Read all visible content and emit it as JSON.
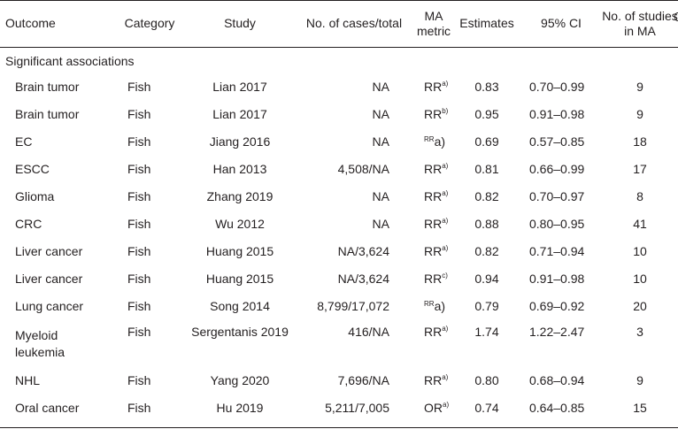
{
  "headers": {
    "outcome": "Outcome",
    "category": "Category",
    "study": "Study",
    "cases": "No. of cases/total",
    "metric_line1": "MA",
    "metric_line2": "metric",
    "estimates": "Estimates",
    "ci": "95% CI",
    "studies_line1": "No. of studies",
    "studies_line2": "in MA"
  },
  "section_label": "Significant associations",
  "rows": [
    {
      "outcome": "Brain tumor",
      "category": "Fish",
      "study": "Lian 2017",
      "cases": "NA",
      "metric": "RR",
      "note": "a)",
      "estimate": "0.83",
      "ci": "0.70–0.99",
      "studies": "9"
    },
    {
      "outcome": "Brain tumor",
      "category": "Fish",
      "study": "Lian 2017",
      "cases": "NA",
      "metric": "RR",
      "note": "b)",
      "estimate": "0.95",
      "ci": "0.91–0.98",
      "studies": "9"
    },
    {
      "outcome": "EC",
      "category": "Fish",
      "study": "Jiang 2016",
      "cases": "NA",
      "metric": "RR",
      "note": "a)",
      "estimate": "0.69",
      "ci": "0.57–0.85",
      "studies": "18"
    },
    {
      "outcome": "ESCC",
      "category": "Fish",
      "study": "Han 2013",
      "cases": "4,508/NA",
      "metric": "RR",
      "note": "a)",
      "estimate": "0.81",
      "ci": "0.66–0.99",
      "studies": "17"
    },
    {
      "outcome": "Glioma",
      "category": "Fish",
      "study": "Zhang 2019",
      "cases": "NA",
      "metric": "RR",
      "note": "a)",
      "estimate": "0.82",
      "ci": "0.70–0.97",
      "studies": "8"
    },
    {
      "outcome": "CRC",
      "category": "Fish",
      "study": "Wu 2012",
      "cases": "NA",
      "metric": "RR",
      "note": "a)",
      "estimate": "0.88",
      "ci": "0.80–0.95",
      "studies": "41"
    },
    {
      "outcome": "Liver cancer",
      "category": "Fish",
      "study": "Huang 2015",
      "cases": "NA/3,624",
      "metric": "RR",
      "note": "a)",
      "estimate": "0.82",
      "ci": "0.71–0.94",
      "studies": "10"
    },
    {
      "outcome": "Liver cancer",
      "category": "Fish",
      "study": "Huang 2015",
      "cases": "NA/3,624",
      "metric": "RR",
      "note": "c)",
      "estimate": "0.94",
      "ci": "0.91–0.98",
      "studies": "10"
    },
    {
      "outcome": "Lung cancer",
      "category": "Fish",
      "study": "Song 2014",
      "cases": "8,799/17,072",
      "metric": "RR",
      "note": "a)",
      "estimate": "0.79",
      "ci": "0.69–0.92",
      "studies": "20"
    },
    {
      "outcome": "Myeloid leukemia",
      "category": "Fish",
      "study": "Sergentanis 2019",
      "cases": "416/NA",
      "metric": "RR",
      "note": "a)",
      "estimate": "1.74",
      "ci": "1.22–2.47",
      "studies": "3"
    },
    {
      "outcome": "NHL",
      "category": "Fish",
      "study": "Yang 2020",
      "cases": "7,696/NA",
      "metric": "RR",
      "note": "a)",
      "estimate": "0.80",
      "ci": "0.68–0.94",
      "studies": "9"
    },
    {
      "outcome": "Oral cancer",
      "category": "Fish",
      "study": "Hu 2019",
      "cases": "5,211/7,005",
      "metric": "OR",
      "note": "a)",
      "estimate": "0.74",
      "ci": "0.64–0.85",
      "studies": "15"
    }
  ]
}
